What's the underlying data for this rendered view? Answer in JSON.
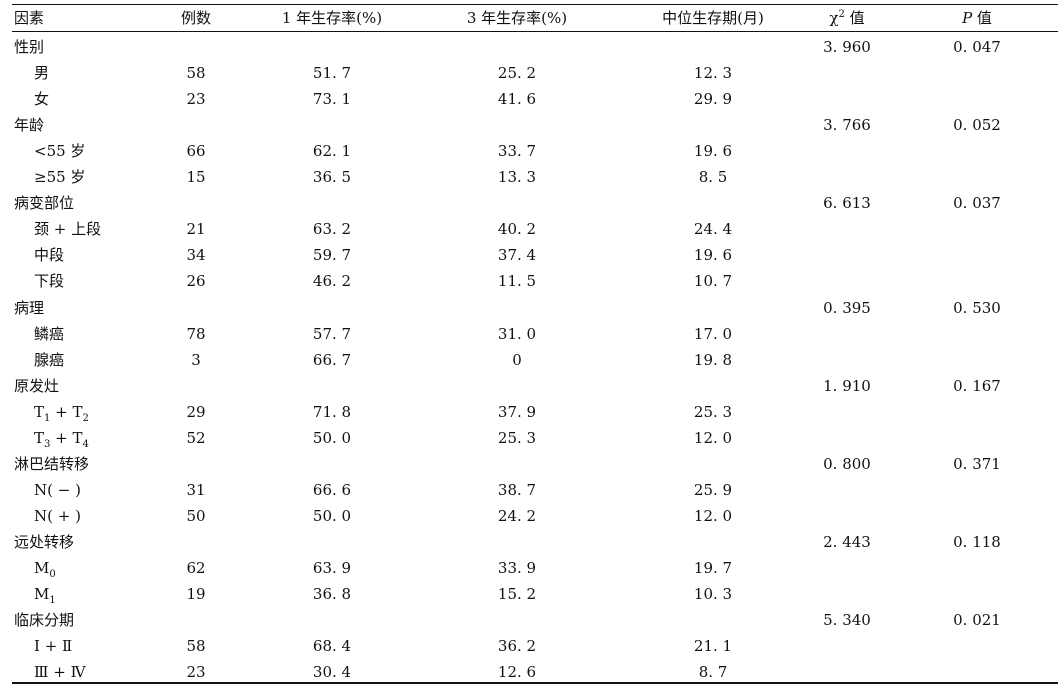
{
  "headers": {
    "factor": "因素",
    "cases": "例数",
    "surv1": "1 年生存率(%)",
    "surv3": "3 年生存率(%)",
    "median": "中位生存期(月)",
    "chi_prefix": "χ",
    "chi_sup": "2",
    "chi_suffix": " 值",
    "p_prefix": "P",
    "p_suffix": " 值"
  },
  "rows": [
    {
      "type": "group",
      "factor": "性别",
      "chi2": "3. 960",
      "p": "0. 047"
    },
    {
      "type": "sub",
      "factor": "男",
      "n": "58",
      "s1": "51. 7",
      "s3": "25. 2",
      "median": "12. 3"
    },
    {
      "type": "sub",
      "factor": "女",
      "n": "23",
      "s1": "73. 1",
      "s3": "41. 6",
      "median": "29. 9"
    },
    {
      "type": "group",
      "factor": "年龄",
      "chi2": "3. 766",
      "p": "0. 052"
    },
    {
      "type": "sub",
      "factor": "<55 岁",
      "n": "66",
      "s1": "62. 1",
      "s3": "33. 7",
      "median": "19. 6"
    },
    {
      "type": "sub",
      "factor": "≥55 岁",
      "n": "15",
      "s1": "36. 5",
      "s3": "13. 3",
      "median": "8. 5"
    },
    {
      "type": "group",
      "factor": "病变部位",
      "chi2": "6. 613",
      "p": "0. 037"
    },
    {
      "type": "sub",
      "factor": "颈 + 上段",
      "n": "21",
      "s1": "63. 2",
      "s3": "40. 2",
      "median": "24. 4"
    },
    {
      "type": "sub",
      "factor": "中段",
      "n": "34",
      "s1": "59. 7",
      "s3": "37. 4",
      "median": "19. 6"
    },
    {
      "type": "sub",
      "factor": "下段",
      "n": "26",
      "s1": "46. 2",
      "s3": "11. 5",
      "median": "10. 7"
    },
    {
      "type": "group",
      "factor": "病理",
      "chi2": "0. 395",
      "p": "0. 530"
    },
    {
      "type": "sub",
      "factor": "鳞癌",
      "n": "78",
      "s1": "57. 7",
      "s3": "31. 0",
      "median": "17. 0"
    },
    {
      "type": "sub",
      "factor": "腺癌",
      "n": "3",
      "s1": "66. 7",
      "s3": "0",
      "median": "19. 8"
    },
    {
      "type": "group",
      "factor": "原发灶",
      "chi2": "1. 910",
      "p": "0. 167"
    },
    {
      "type": "sub",
      "factor": "T1 + T2",
      "n": "29",
      "s1": "71. 8",
      "s3": "37. 9",
      "median": "25. 3"
    },
    {
      "type": "sub",
      "factor": "T3 + T4",
      "n": "52",
      "s1": "50. 0",
      "s3": "25. 3",
      "median": "12. 0"
    },
    {
      "type": "group",
      "factor": "淋巴结转移",
      "chi2": "0. 800",
      "p": "0. 371"
    },
    {
      "type": "sub",
      "factor": "N( − )",
      "n": "31",
      "s1": "66. 6",
      "s3": "38. 7",
      "median": "25. 9"
    },
    {
      "type": "sub",
      "factor": "N( + )",
      "n": "50",
      "s1": "50. 0",
      "s3": "24. 2",
      "median": "12. 0"
    },
    {
      "type": "group",
      "factor": "远处转移",
      "chi2": "2. 443",
      "p": "0. 118"
    },
    {
      "type": "sub",
      "factor": "M0",
      "n": "62",
      "s1": "63. 9",
      "s3": "33. 9",
      "median": "19. 7"
    },
    {
      "type": "sub",
      "factor": "M1",
      "n": "19",
      "s1": "36. 8",
      "s3": "15. 2",
      "median": "10. 3"
    },
    {
      "type": "group",
      "factor": "临床分期",
      "chi2": "5. 340",
      "p": "0. 021"
    },
    {
      "type": "sub",
      "factor": "Ⅰ + Ⅱ",
      "n": "58",
      "s1": "68. 4",
      "s3": "36. 2",
      "median": "21. 1"
    },
    {
      "type": "sub",
      "factor": "Ⅲ + Ⅳ",
      "n": "23",
      "s1": "30. 4",
      "s3": "12. 6",
      "median": "8. 7"
    }
  ]
}
